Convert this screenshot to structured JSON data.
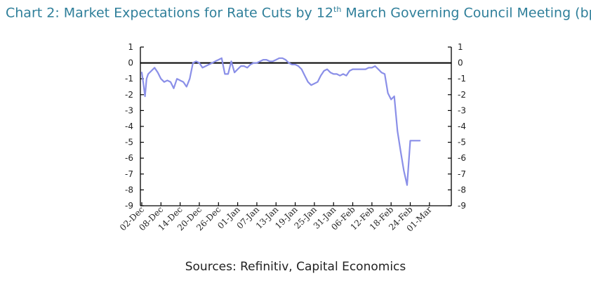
{
  "chart_data": {
    "type": "line",
    "title_main": "Chart 2: Market Expectations for Rate Cuts by 12",
    "title_sup": "th",
    "title_rest": " March Governing Council Meeting (bp)",
    "source": "Sources: Refinitiv, Capital Economics",
    "ylim": [
      -9,
      1
    ],
    "y_ticks": [
      "1",
      "0",
      "-1",
      "-2",
      "-3",
      "-4",
      "-5",
      "-6",
      "-7",
      "-8",
      "-9"
    ],
    "x_ticks": [
      "02-Dec",
      "08-Dec",
      "14-Dec",
      "20-Dec",
      "26-Dec",
      "01-Jan",
      "07-Jan",
      "13-Jan",
      "19-Jan",
      "25-Jan",
      "31-Jan",
      "06-Feb",
      "12-Feb",
      "18-Feb",
      "24-Feb",
      "01-Mar"
    ],
    "x_day_range": [
      0,
      95
    ],
    "x_tick_days": [
      0,
      6,
      12,
      18,
      24,
      30,
      36,
      42,
      48,
      54,
      60,
      66,
      72,
      78,
      84,
      90
    ],
    "series": [
      {
        "name": "Market expectations (bp)",
        "color": "#8a8fe8",
        "days": [
          0,
          0.5,
          1,
          1.5,
          2,
          3,
          4,
          5,
          6,
          7,
          8,
          9,
          10,
          11,
          12,
          13,
          14,
          15,
          16,
          17,
          18,
          19,
          20,
          21,
          22,
          23,
          24,
          25,
          26,
          27,
          28,
          29,
          30,
          31,
          32,
          33,
          34,
          35,
          36,
          37,
          38,
          39,
          40,
          41,
          42,
          43,
          44,
          45,
          46,
          47,
          48,
          49,
          50,
          51,
          52,
          53,
          54,
          55,
          56,
          57,
          58,
          59,
          60,
          61,
          62,
          63,
          64,
          65,
          66,
          67,
          68,
          69,
          70,
          71,
          72,
          73,
          74,
          75,
          76,
          77,
          78,
          79,
          80,
          81,
          82,
          83,
          84,
          85,
          86,
          87,
          88,
          89,
          90,
          91,
          92,
          93
        ],
        "values": [
          -0.6,
          -1.3,
          -2.1,
          -1.0,
          -0.7,
          -0.5,
          -0.3,
          -0.6,
          -1.0,
          -1.2,
          -1.1,
          -1.2,
          -1.6,
          -1.0,
          -1.1,
          -1.2,
          -1.5,
          -1.0,
          0.0,
          0.1,
          0.0,
          -0.3,
          -0.2,
          -0.1,
          0.0,
          0.1,
          0.2,
          0.3,
          -0.7,
          -0.7,
          0.1,
          -0.6,
          -0.4,
          -0.2,
          -0.2,
          -0.3,
          -0.1,
          0.0,
          0.0,
          0.1,
          0.2,
          0.2,
          0.1,
          0.1,
          0.2,
          0.3,
          0.3,
          0.2,
          0.0,
          -0.1,
          -0.1,
          -0.2,
          -0.4,
          -0.8,
          -1.2,
          -1.4,
          -1.3,
          -1.2,
          -0.8,
          -0.5,
          -0.4,
          -0.6,
          -0.7,
          -0.7,
          -0.8,
          -0.7,
          -0.8,
          -0.5,
          -0.4,
          -0.4,
          -0.4,
          -0.4,
          -0.4,
          -0.3,
          -0.3,
          -0.2,
          -0.4,
          -0.6,
          -0.7,
          -1.9,
          -2.3,
          -2.1,
          -4.3,
          -5.6,
          -6.8,
          -7.7,
          -4.9,
          -4.9,
          -4.9,
          -4.9,
          -4.9,
          -4.9,
          -4.9,
          -4.9,
          -4.9,
          -4.9
        ]
      }
    ]
  }
}
